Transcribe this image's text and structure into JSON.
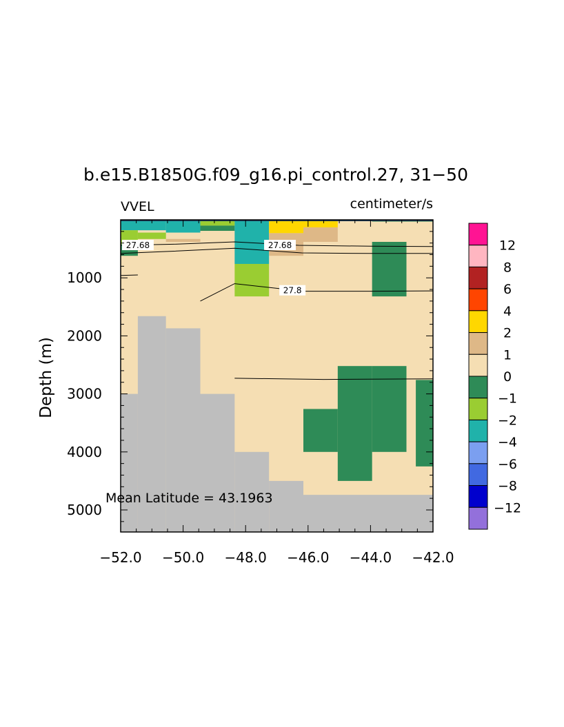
{
  "chart_data": {
    "type": "heatmap",
    "title": "b.e15.B1850G.f09_g16.pi_control.27, 31−50",
    "left_label": "VVEL",
    "units_label": "centimeter/s",
    "ylabel": "Depth (m)",
    "xlabel": "",
    "xlim": [
      -52.0,
      -42.0
    ],
    "ylim": [
      5380,
      0
    ],
    "x_ticks": [
      -52.0,
      -50.0,
      -48.0,
      -46.0,
      -44.0,
      -42.0
    ],
    "x_tick_labels": [
      "−52.0",
      "−50.0",
      "−48.0",
      "−46.0",
      "−44.0",
      "−42.0"
    ],
    "y_ticks": [
      1000,
      2000,
      3000,
      4000,
      5000
    ],
    "y_tick_labels": [
      "1000",
      "2000",
      "3000",
      "4000",
      "5000"
    ],
    "annotation": "Mean Latitude = 43.1963",
    "background_bin": "0 to 1",
    "cells": [
      {
        "x0": -52.0,
        "x1": -50.55,
        "d0": 0,
        "d1": 180,
        "bin": "-4 to -2"
      },
      {
        "x0": -50.55,
        "x1": -49.45,
        "d0": 0,
        "d1": 220,
        "bin": "-4 to -2"
      },
      {
        "x0": -49.45,
        "x1": -48.35,
        "d0": 0,
        "d1": 100,
        "bin": "-2 to -1"
      },
      {
        "x0": -49.45,
        "x1": -48.35,
        "d0": 100,
        "d1": 190,
        "bin": "-1 to 0"
      },
      {
        "x0": -52.0,
        "x1": -51.45,
        "d0": 180,
        "d1": 420,
        "bin": "-2 to -1"
      },
      {
        "x0": -51.45,
        "x1": -50.55,
        "d0": 220,
        "d1": 330,
        "bin": "-2 to -1"
      },
      {
        "x0": -52.0,
        "x1": -51.45,
        "d0": 420,
        "d1": 620,
        "bin": "-1 to 0"
      },
      {
        "x0": -48.35,
        "x1": -47.25,
        "d0": 0,
        "d1": 760,
        "bin": "-4 to -2"
      },
      {
        "x0": -48.35,
        "x1": -47.25,
        "d0": 760,
        "d1": 1320,
        "bin": "-2 to -1"
      },
      {
        "x0": -47.25,
        "x1": -46.15,
        "d0": 0,
        "d1": 230,
        "bin": "2 to 4"
      },
      {
        "x0": -47.25,
        "x1": -46.15,
        "d0": 230,
        "d1": 620,
        "bin": "1 to 2"
      },
      {
        "x0": -46.15,
        "x1": -45.05,
        "d0": 0,
        "d1": 130,
        "bin": "2 to 4"
      },
      {
        "x0": -46.15,
        "x1": -45.05,
        "d0": 130,
        "d1": 380,
        "bin": "1 to 2"
      },
      {
        "x0": -50.55,
        "x1": -49.45,
        "d0": 330,
        "d1": 380,
        "bin": "1 to 2"
      },
      {
        "x0": -43.95,
        "x1": -42.85,
        "d0": 0,
        "d1": 30,
        "bin": "-1 to 0"
      },
      {
        "x0": -42.85,
        "x1": -42.0,
        "d0": 0,
        "d1": 30,
        "bin": "-1 to 0"
      },
      {
        "x0": -43.95,
        "x1": -42.85,
        "d0": 380,
        "d1": 1320,
        "bin": "-1 to 0"
      },
      {
        "x0": -45.05,
        "x1": -43.95,
        "d0": 2520,
        "d1": 4500,
        "bin": "-1 to 0"
      },
      {
        "x0": -43.95,
        "x1": -42.85,
        "d0": 2520,
        "d1": 4000,
        "bin": "-1 to 0"
      },
      {
        "x0": -46.15,
        "x1": -45.05,
        "d0": 3260,
        "d1": 4000,
        "bin": "-1 to 0"
      },
      {
        "x0": -42.55,
        "x1": -42.0,
        "d0": 2760,
        "d1": 4250,
        "bin": "-1 to 0"
      }
    ],
    "land": [
      {
        "x0": -52.0,
        "x1": -51.45,
        "d0": 3000,
        "d1": 5380
      },
      {
        "x0": -51.45,
        "x1": -50.55,
        "d0": 1660,
        "d1": 5380
      },
      {
        "x0": -50.55,
        "x1": -49.45,
        "d0": 1870,
        "d1": 5380
      },
      {
        "x0": -49.45,
        "x1": -48.35,
        "d0": 3000,
        "d1": 5380
      },
      {
        "x0": -48.35,
        "x1": -47.25,
        "d0": 4000,
        "d1": 5380
      },
      {
        "x0": -47.25,
        "x1": -46.15,
        "d0": 4500,
        "d1": 5380
      },
      {
        "x0": -46.15,
        "x1": -42.0,
        "d0": 4740,
        "d1": 5380
      }
    ],
    "contours": [
      {
        "label": "27.68",
        "points": [
          [
            -52.0,
            440
          ],
          [
            -50.3,
            420
          ],
          [
            -48.35,
            380
          ],
          [
            -46.3,
            440
          ],
          [
            -44.0,
            455
          ],
          [
            -42.0,
            460
          ]
        ],
        "label_positions": [
          [
            -51.45,
            440
          ],
          [
            -46.9,
            440
          ]
        ]
      },
      {
        "label": "",
        "points": [
          [
            -52.0,
            580
          ],
          [
            -50.3,
            540
          ],
          [
            -48.35,
            490
          ],
          [
            -46.2,
            570
          ],
          [
            -44.0,
            580
          ],
          [
            -42.0,
            580
          ]
        ]
      },
      {
        "label": "",
        "points": [
          [
            -52.0,
            960
          ],
          [
            -51.45,
            950
          ]
        ]
      },
      {
        "label": "27.8",
        "points": [
          [
            -49.45,
            1400
          ],
          [
            -48.35,
            1100
          ],
          [
            -46.15,
            1230
          ],
          [
            -44.0,
            1230
          ],
          [
            -42.0,
            1225
          ]
        ],
        "label_positions": [
          [
            -46.5,
            1220
          ]
        ]
      },
      {
        "label": "",
        "points": [
          [
            -48.35,
            2730
          ],
          [
            -45.5,
            2750
          ],
          [
            -42.0,
            2740
          ]
        ]
      }
    ],
    "colorbar": {
      "bins": [
        {
          "lo": 12,
          "hi": null,
          "color": "#ff1493"
        },
        {
          "lo": 8,
          "hi": 12,
          "color": "#ffb6c1"
        },
        {
          "lo": 6,
          "hi": 8,
          "color": "#b22222"
        },
        {
          "lo": 4,
          "hi": 6,
          "color": "#ff4500"
        },
        {
          "lo": 2,
          "hi": 4,
          "color": "#ffd700"
        },
        {
          "lo": 1,
          "hi": 2,
          "color": "#deb887"
        },
        {
          "lo": 0,
          "hi": 1,
          "color": "#f5deb3"
        },
        {
          "lo": -1,
          "hi": 0,
          "color": "#2e8b57"
        },
        {
          "lo": -2,
          "hi": -1,
          "color": "#9acd32"
        },
        {
          "lo": -4,
          "hi": -2,
          "color": "#20b2aa"
        },
        {
          "lo": -6,
          "hi": -4,
          "color": "#7b9ff0"
        },
        {
          "lo": -8,
          "hi": -6,
          "color": "#4169e1"
        },
        {
          "lo": -12,
          "hi": -8,
          "color": "#0000cd"
        },
        {
          "lo": null,
          "hi": -12,
          "color": "#9370db"
        }
      ],
      "labels": [
        "12",
        "8",
        "6",
        "4",
        "2",
        "1",
        "0",
        "−1",
        "−2",
        "−4",
        "−6",
        "−8",
        "−12"
      ]
    },
    "land_color": "#bebebe",
    "surface_color": "#1e3d5c"
  }
}
